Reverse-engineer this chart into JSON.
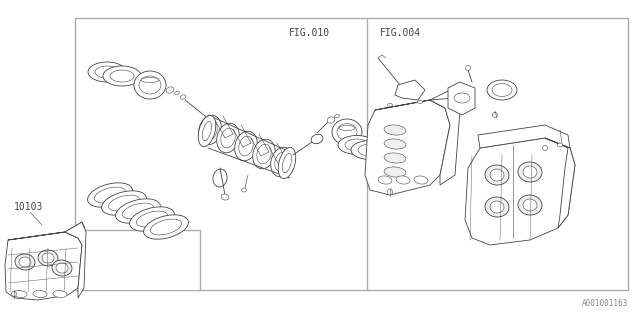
{
  "background_color": "#ffffff",
  "line_color": "#444444",
  "text_color": "#444444",
  "fig_label_010": "FIG.010",
  "fig_label_004": "FIG.004",
  "part_label": "10103",
  "image_id": "A001001163",
  "lw": 0.6,
  "thin_lw": 0.4,
  "box_color": "#aaaaaa",
  "notch_line_color": "#aaaaaa"
}
